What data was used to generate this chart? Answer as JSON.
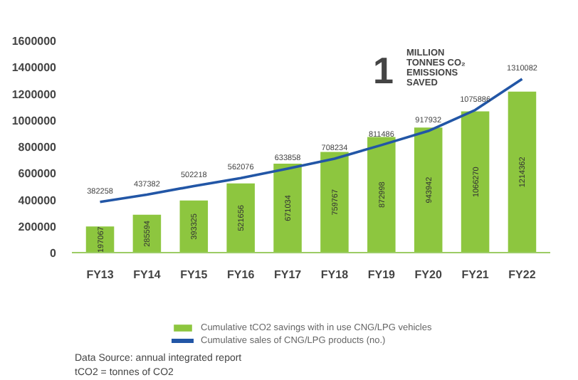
{
  "chart_data": {
    "type": "bar",
    "categories": [
      "FY13",
      "FY14",
      "FY15",
      "FY16",
      "FY17",
      "FY18",
      "FY19",
      "FY20",
      "FY21",
      "FY22"
    ],
    "series": [
      {
        "name": "Cumulative tCO2 savings with in use CNG/LPG vehicles",
        "color": "#8dc63f",
        "values": [
          197067,
          285594,
          393325,
          521656,
          671034,
          759767,
          872998,
          943942,
          1066270,
          1214362
        ]
      },
      {
        "name": "Cumulative sales of CNG/LPG products (no.)",
        "type": "line",
        "color": "#2256a6",
        "values": [
          382258,
          437382,
          502218,
          562076,
          633858,
          708234,
          811486,
          917932,
          1075886,
          1310082
        ]
      }
    ],
    "ylim": [
      0,
      1600000
    ],
    "yticks": [
      0,
      200000,
      400000,
      600000,
      800000,
      1000000,
      1200000,
      1400000,
      1600000
    ],
    "data_labels": true,
    "grid": false,
    "legend": "bottom",
    "annotations": [
      "1 MILLION TONNES CO₂ EMISSIONS SAVED",
      "Data Source: annual integrated report",
      "tCO2 = tonnes of CO2"
    ]
  }
}
